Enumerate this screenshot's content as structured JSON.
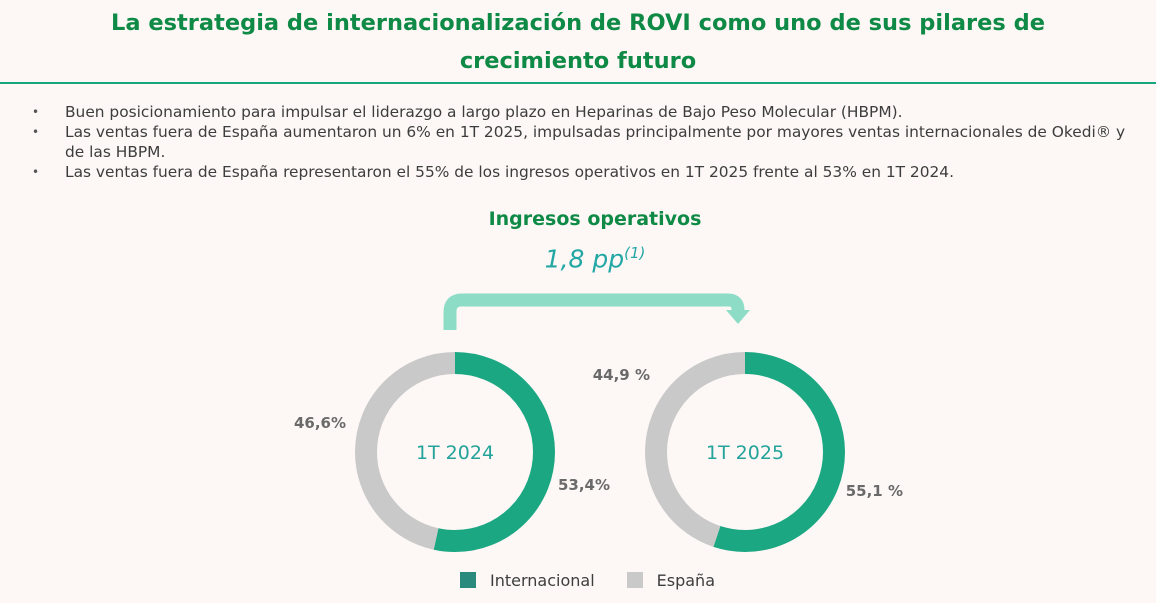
{
  "header": {
    "title_line1": "La estrategia de internacionalización de ROVI como uno de sus pilares de",
    "title_line2": "crecimiento futuro"
  },
  "bullets": [
    "Buen posicionamiento para impulsar el liderazgo a largo plazo en Heparinas de Bajo Peso Molecular (HBPM).",
    "Las ventas fuera de España aumentaron un 6% en 1T 2025, impulsadas principalmente por mayores ventas internacionales de Okedi® y de las HBPM.",
    "Las ventas fuera de España representaron el 55% de los ingresos operativos en 1T 2025 frente al 53% en 1T 2024."
  ],
  "bullet_marker": "•",
  "chart_data": {
    "type": "pie",
    "title": "Ingresos operativos",
    "annotation": {
      "text": "1,8 pp",
      "superscript": "(1)"
    },
    "legend_position": "bottom",
    "series_names": [
      "Internacional",
      "España"
    ],
    "colors": {
      "Internacional": "#1aa782",
      "España": "#c9c9c9",
      "legend_internacional": "#2b8a7e"
    },
    "charts": [
      {
        "center_label": "1T 2024",
        "slices": [
          {
            "name": "Internacional",
            "value": 53.4,
            "label": "53,4%"
          },
          {
            "name": "España",
            "value": 46.6,
            "label": "46,6%"
          }
        ]
      },
      {
        "center_label": "1T 2025",
        "slices": [
          {
            "name": "Internacional",
            "value": 55.1,
            "label": "55,1 %"
          },
          {
            "name": "España",
            "value": 44.9,
            "label": "44,9 %"
          }
        ]
      }
    ]
  }
}
